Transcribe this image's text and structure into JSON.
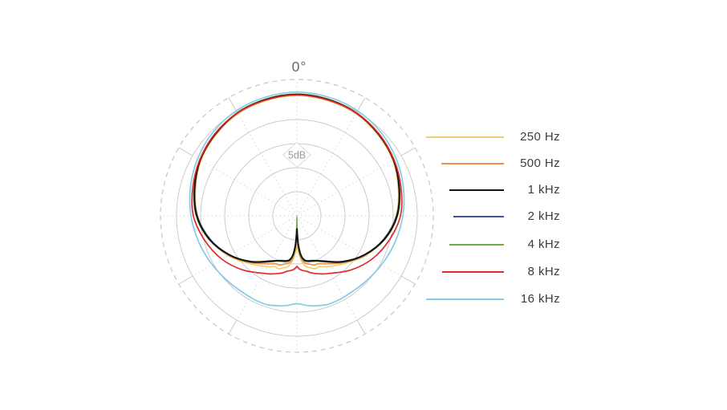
{
  "page": {
    "background_color": "#ffffff"
  },
  "chart": {
    "top_axis_label": "0°",
    "scale_label": "5dB",
    "grid": {
      "solid_rings": 5,
      "ring_step_db": 5,
      "outer_ring_style": "dashed",
      "spoke_step_deg": 30
    }
  },
  "colors": {
    "grid_ring": "#cbcbcb",
    "grid_dashed": "#c6c6c6",
    "grid_dotted_spoke": "#d2d2d2",
    "axis_label_text": "#686868",
    "scale_label_text": "#9a9a9a",
    "legend_text": "#3c3c3c"
  },
  "chart_data": {
    "type": "polar-line",
    "description": "Microphone polar pattern, one trace per frequency",
    "angle_convention": "degrees from 0 (front, top of plot), symmetric left/right",
    "radial_unit": "dB relative to outer solid ring (0 dB), 5 dB per ring division",
    "legend_position": "right",
    "angles_deg": [
      0,
      15,
      30,
      45,
      60,
      75,
      90,
      105,
      120,
      135,
      150,
      156,
      161,
      166,
      170,
      174,
      177,
      179,
      180
    ],
    "series": [
      {
        "name": "250 Hz",
        "color": "#f0d06e",
        "levels_db": [
          0,
          -0.2,
          -0.5,
          -1.2,
          -2,
          -3.2,
          -4.4,
          -6.3,
          -8.5,
          -11,
          -12.8,
          -13.5,
          -13.4,
          -13.9,
          -14.3,
          -15.5,
          -17,
          -18.2,
          -18.7
        ]
      },
      {
        "name": "500 Hz",
        "color": "#f28e52",
        "levels_db": [
          0.1,
          -0.1,
          -0.4,
          -1.1,
          -1.9,
          -3.1,
          -4.3,
          -6.2,
          -8.6,
          -11.3,
          -13.5,
          -14.1,
          -14.2,
          -14.7,
          -15,
          -16,
          -17.7,
          -19.5,
          -20.5
        ]
      },
      {
        "name": "1 kHz",
        "color": "#141414",
        "levels_db": [
          0.2,
          0,
          -0.3,
          -1,
          -1.8,
          -3,
          -4.2,
          -6.2,
          -8.8,
          -11.5,
          -14.1,
          -14.8,
          -15.1,
          -15.3,
          -15.6,
          -16.7,
          -18.8,
          -21.2,
          -22.3
        ]
      },
      {
        "name": "2 kHz",
        "color": "#44549c",
        "levels_db": [
          0.2,
          0,
          -0.3,
          -1,
          -1.8,
          -3,
          -4.3,
          -6.3,
          -8.8,
          -11.6,
          -14.2,
          -14.8,
          -15.2,
          -15.4,
          -15.7,
          -16.5,
          -18.5,
          -20.7,
          -21.8
        ]
      },
      {
        "name": "4 kHz",
        "color": "#72af43",
        "levels_db": [
          0.3,
          0.1,
          -0.3,
          -0.9,
          -1.8,
          -2.9,
          -4.1,
          -6.1,
          -8.7,
          -11.4,
          -14,
          -14.7,
          -15,
          -15.3,
          -15.5,
          -16.3,
          -18.3,
          -22.7,
          -24.7
        ]
      },
      {
        "name": "8 kHz",
        "color": "#e12b2c",
        "levels_db": [
          0.1,
          -0.1,
          -0.3,
          -0.9,
          -1.7,
          -2.6,
          -3.5,
          -5.2,
          -7,
          -9.1,
          -11.2,
          -11.8,
          -12.3,
          -12.8,
          -13.3,
          -13.6,
          -13.9,
          -14.3,
          -14.5
        ]
      },
      {
        "name": "16 kHz",
        "color": "#85cbe8",
        "levels_db": [
          0.7,
          0.5,
          0.2,
          -0.4,
          -1.2,
          -2.1,
          -3,
          -3.9,
          -4.7,
          -5.3,
          -5.5,
          -5.5,
          -5.5,
          -5.8,
          -6,
          -6.3,
          -6.6,
          -6.7,
          -6.8
        ]
      }
    ]
  }
}
